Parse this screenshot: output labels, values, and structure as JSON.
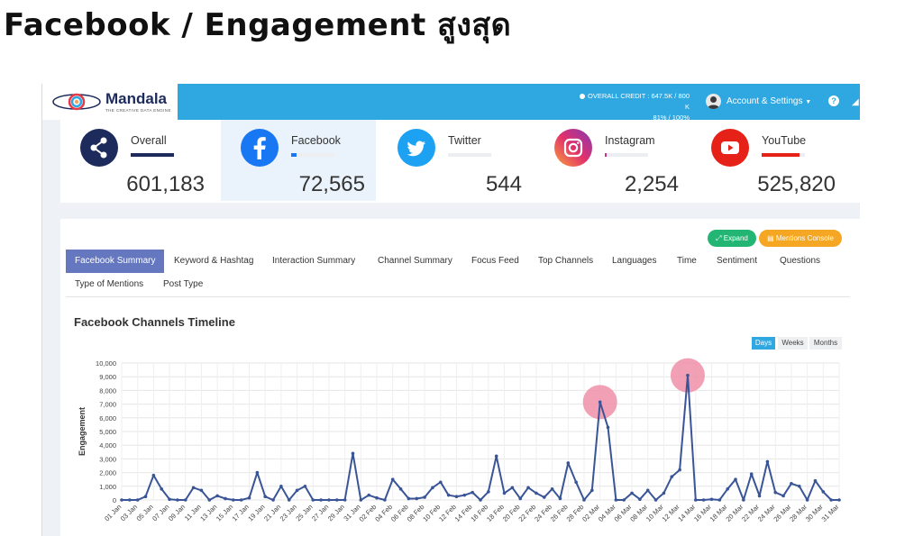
{
  "slide": {
    "title": "Facebook / Engagement สูงสุด"
  },
  "app": {
    "logo_name": "Mandala",
    "logo_tagline": "THE CREATIVE DATA ENGINE",
    "credit_line1": "OVERALL CREDIT : 647.5K / 800 K",
    "credit_line2": "81% / 100%",
    "account_label": "Account & Settings",
    "help_label": "?",
    "colors": {
      "topbar": "#2fa7e0",
      "tab_active": "#6577bf",
      "line": "#3a5597",
      "highlight": "#f08fa8"
    }
  },
  "stats": [
    {
      "label": "Overall",
      "value": "601,183",
      "icon": "share-icon",
      "color": "#1d2b5c",
      "fill": 1.0
    },
    {
      "label": "Facebook",
      "value": "72,565",
      "icon": "facebook-icon",
      "color": "#1877f2",
      "fill": 0.12
    },
    {
      "label": "Twitter",
      "value": "544",
      "icon": "twitter-icon",
      "color": "#1da1f2",
      "fill": 0.0
    },
    {
      "label": "Instagram",
      "value": "2,254",
      "icon": "instagram-icon",
      "color": "#c13584",
      "fill": 0.01
    },
    {
      "label": "YouTube",
      "value": "525,820",
      "icon": "youtube-icon",
      "color": "#e62117",
      "fill": 0.87
    }
  ],
  "actions": {
    "expand": "Expand",
    "mentions_console": "Mentions Console"
  },
  "tabs_row1": [
    "Facebook Summary",
    "Keyword & Hashtag",
    "Interaction Summary",
    "Channel Summary",
    "Focus Feed",
    "Top Channels",
    "Languages",
    "Time",
    "Sentiment",
    "Questions"
  ],
  "tabs_row2": [
    "Type of Mentions",
    "Post Type"
  ],
  "chart_title": "Facebook Channels Timeline",
  "range_buttons": [
    "Days",
    "Weeks",
    "Months"
  ],
  "chart_data": {
    "type": "line",
    "title": "Facebook Channels Timeline",
    "xlabel": "",
    "ylabel": "Engagement",
    "ylim": [
      0,
      10000
    ],
    "yticks": [
      0,
      1000,
      2000,
      3000,
      4000,
      5000,
      6000,
      7000,
      8000,
      9000,
      10000
    ],
    "ytick_labels": [
      "0",
      "1,000",
      "2,000",
      "3,000",
      "4,000",
      "5,000",
      "6,000",
      "7,000",
      "8,000",
      "9,000",
      "10,000"
    ],
    "x_tick_labels": [
      "01 Jan",
      "03 Jan",
      "05 Jan",
      "07 Jan",
      "09 Jan",
      "11 Jan",
      "13 Jan",
      "15 Jan",
      "17 Jan",
      "19 Jan",
      "21 Jan",
      "23 Jan",
      "25 Jan",
      "27 Jan",
      "29 Jan",
      "31 Jan",
      "02 Feb",
      "04 Feb",
      "06 Feb",
      "08 Feb",
      "10 Feb",
      "12 Feb",
      "14 Feb",
      "16 Feb",
      "18 Feb",
      "20 Feb",
      "22 Feb",
      "24 Feb",
      "26 Feb",
      "28 Feb",
      "02 Mar",
      "04 Mar",
      "06 Mar",
      "08 Mar",
      "10 Mar",
      "12 Mar",
      "14 Mar",
      "16 Mar",
      "18 Mar",
      "20 Mar",
      "22 Mar",
      "24 Mar",
      "26 Mar",
      "28 Mar",
      "30 Mar"
    ],
    "x_tick_label_last": "31 Mar",
    "grid": true,
    "highlighted_days": [
      "02 Mar",
      "13 Mar"
    ],
    "series": [
      {
        "values": [
          0,
          0,
          0,
          250,
          1800,
          800,
          50,
          0,
          0,
          900,
          700,
          0,
          300,
          100,
          0,
          0,
          150,
          2000,
          250,
          0,
          1000,
          0,
          700,
          1000,
          0,
          0,
          0,
          0,
          0,
          3400,
          0,
          350,
          150,
          0,
          1500,
          800,
          100,
          100,
          200,
          900,
          1300,
          350,
          250,
          350,
          550,
          0,
          600,
          3200,
          500,
          900,
          100,
          900,
          500,
          200,
          800,
          100,
          2700,
          1300,
          0,
          700,
          7150,
          5300,
          0,
          0,
          500,
          50,
          700,
          0,
          500,
          1700,
          2200,
          9100,
          0,
          0,
          50,
          0,
          800,
          1500,
          0,
          1900,
          300,
          2800,
          550,
          300,
          1200,
          1000,
          0,
          1400,
          600,
          0,
          0
        ]
      }
    ]
  }
}
